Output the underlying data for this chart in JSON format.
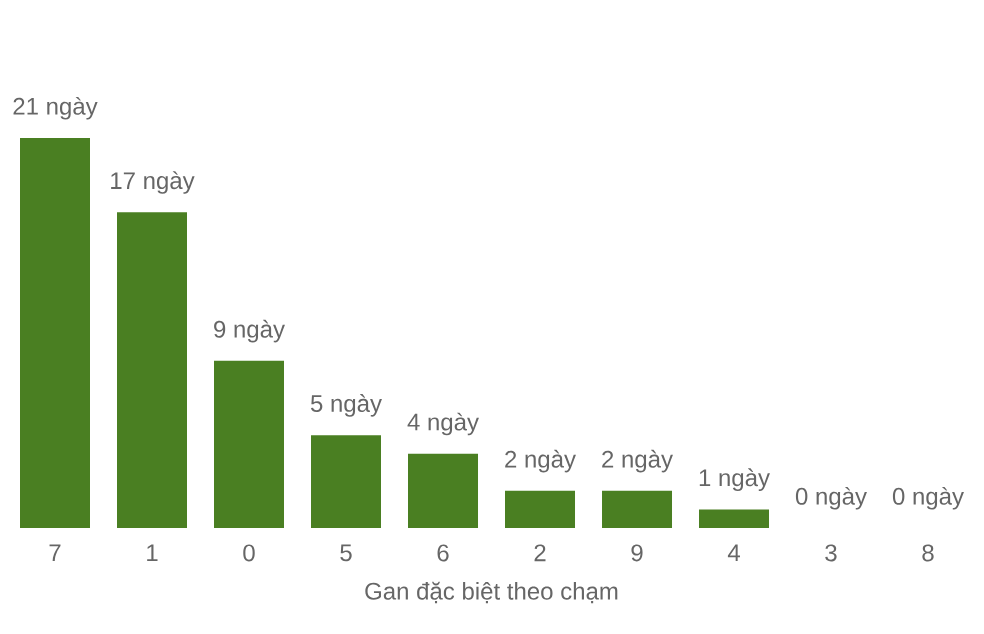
{
  "chart_data": {
    "type": "bar",
    "xlabel": "Gan đặc biệt theo chạm",
    "categories": [
      "7",
      "1",
      "0",
      "5",
      "6",
      "2",
      "9",
      "4",
      "3",
      "8"
    ],
    "values": [
      21,
      17,
      9,
      5,
      4,
      2,
      2,
      1,
      0,
      0
    ],
    "value_labels": [
      "21 ngày",
      "17 ngày",
      "9 ngày",
      "5 ngày",
      "4 ngày",
      "2 ngày",
      "2 ngày",
      "1 ngày",
      "0 ngày",
      "0 ngày"
    ],
    "color": "#4a7f22"
  }
}
